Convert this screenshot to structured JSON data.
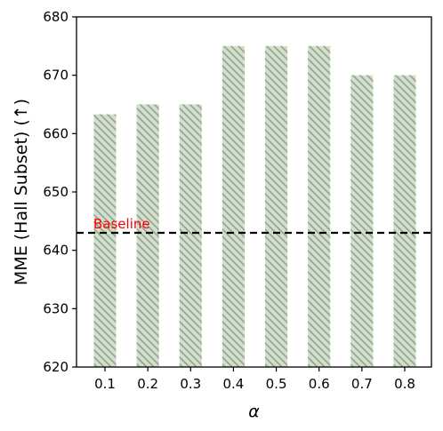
{
  "chart_data": {
    "type": "bar",
    "categories": [
      "0.1",
      "0.2",
      "0.3",
      "0.4",
      "0.5",
      "0.6",
      "0.7",
      "0.8"
    ],
    "values": [
      663.3,
      665,
      665,
      675,
      675,
      675,
      670,
      670
    ],
    "xlabel": "α",
    "ylabel": "MME (Hall Subset) (↑)",
    "ylim": [
      620,
      680
    ],
    "yticks": [
      620,
      630,
      640,
      650,
      660,
      670,
      680
    ],
    "grid": false,
    "bar_color": "#d3e0c5",
    "hatch_color": "#8fa0a0",
    "baseline": {
      "label": "Baseline",
      "value": 643,
      "color": "#ff0000",
      "line_color": "#000000",
      "style": "dashed"
    }
  }
}
